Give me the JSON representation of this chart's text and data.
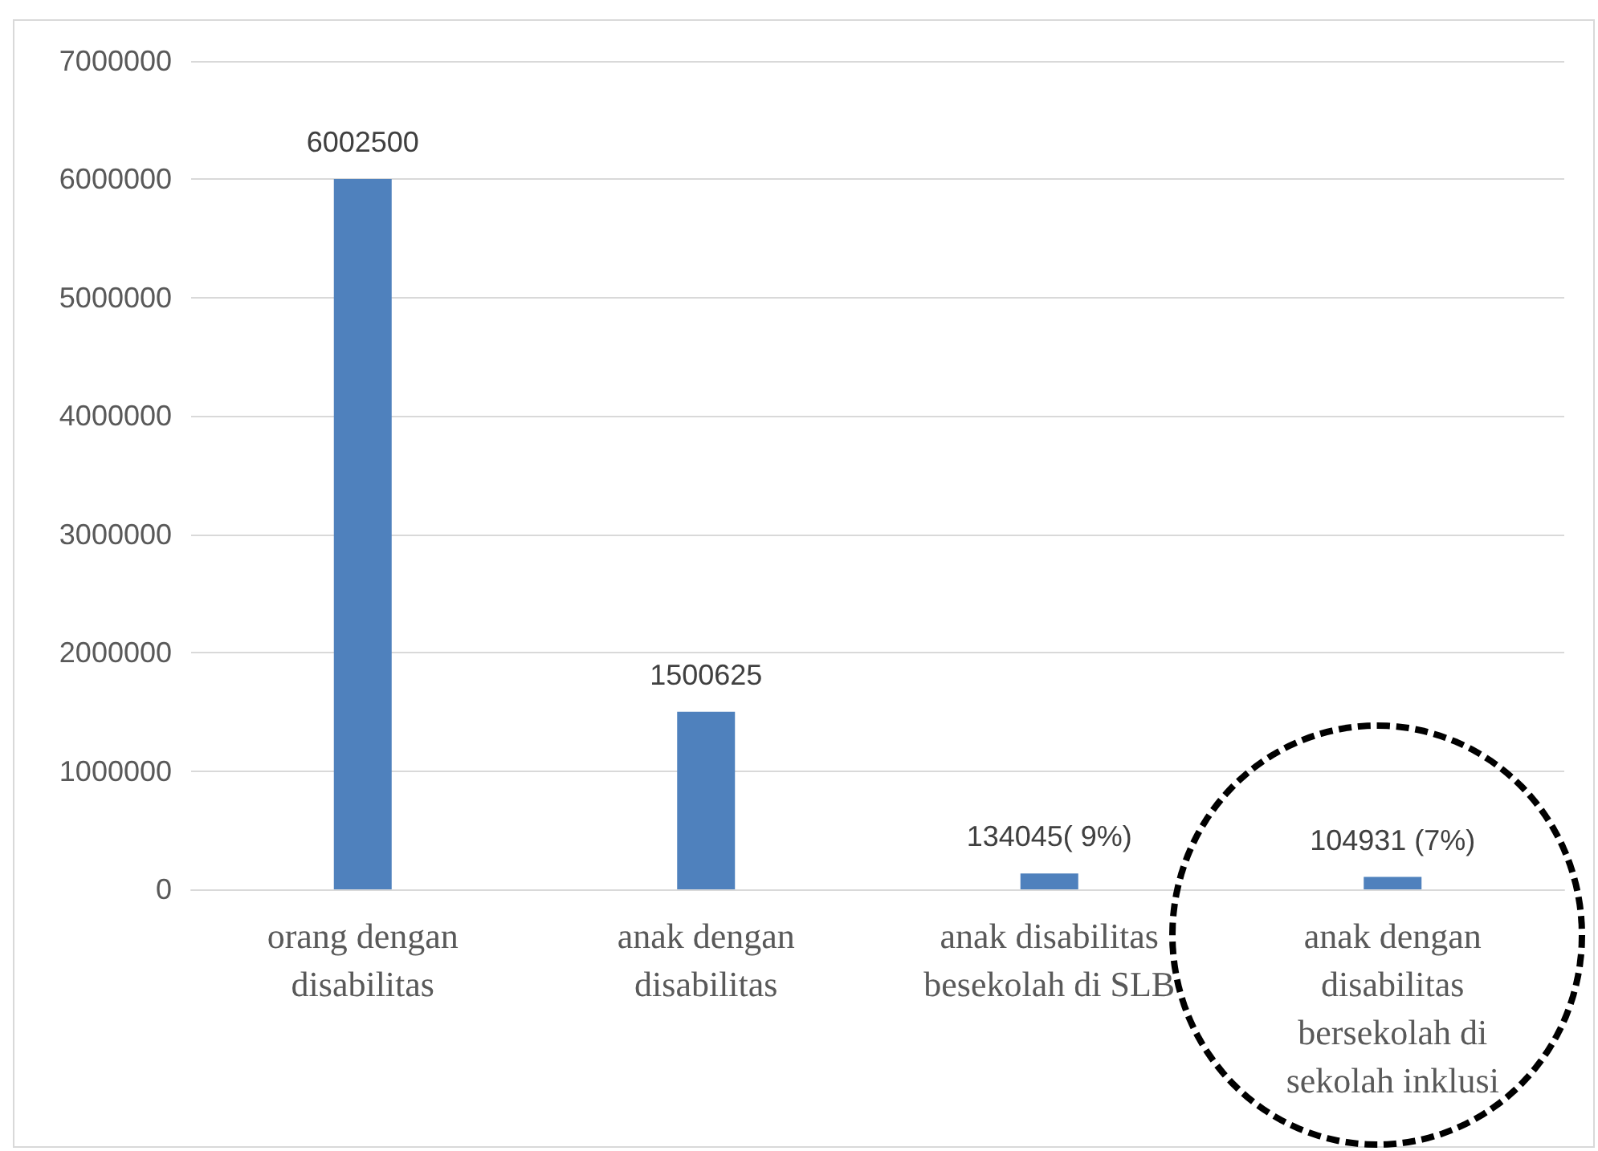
{
  "chart_data": {
    "type": "bar",
    "categories": [
      "orang dengan disabilitas",
      "anak dengan disabilitas",
      "anak disabilitas besekolah di SLB",
      "anak dengan disabilitas bersekolah di sekolah inklusi"
    ],
    "values": [
      6002500,
      1500625,
      134045,
      104931
    ],
    "value_labels": [
      "6002500",
      "1500625",
      "134045( 9%)",
      "104931 (7%)"
    ],
    "color": "#4f81bd",
    "ylim": [
      0,
      7000000
    ],
    "yticks": [
      0,
      1000000,
      2000000,
      3000000,
      4000000,
      5000000,
      6000000,
      7000000
    ],
    "grid": "y"
  }
}
